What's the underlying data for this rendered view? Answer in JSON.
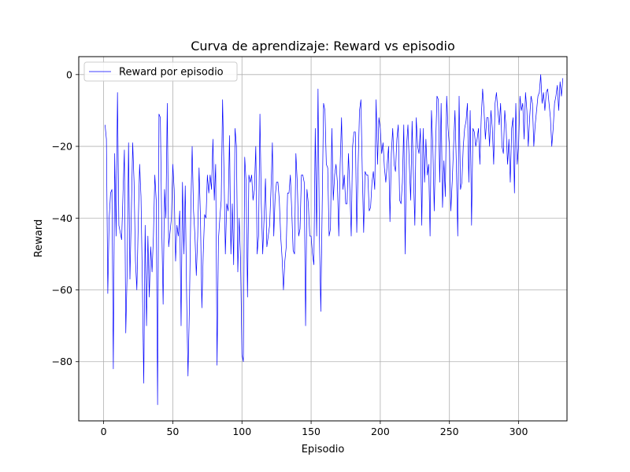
{
  "chart_data": {
    "type": "line",
    "title": "Curva de aprendizaje: Reward vs episodio",
    "xlabel": "Episodio",
    "ylabel": "Reward",
    "xlim": [
      -18,
      335
    ],
    "ylim": [
      -96.5,
      5
    ],
    "xticks": [
      0,
      50,
      100,
      150,
      200,
      250,
      300
    ],
    "yticks": [
      0,
      -20,
      -40,
      -60,
      -80
    ],
    "grid": true,
    "legend_position": "top-left",
    "series": [
      {
        "name": "Reward por episodio",
        "color": "#0000ff",
        "x_start": 1,
        "x_step": 1,
        "values": [
          -14,
          -18,
          -61,
          -40,
          -33,
          -32,
          -82,
          -22,
          -45,
          -5,
          -42,
          -44,
          -46,
          -33,
          -21,
          -72,
          -55,
          -19,
          -57,
          -39,
          -19,
          -30,
          -52,
          -60,
          -42,
          -25,
          -34,
          -58,
          -86,
          -42,
          -70,
          -45,
          -62,
          -48,
          -55,
          -45,
          -28,
          -35,
          -92,
          -11,
          -12,
          -42,
          -64,
          -32,
          -40,
          -8,
          -48,
          -44,
          -40,
          -25,
          -32,
          -52,
          -42,
          -45,
          -38,
          -70,
          -30,
          -50,
          -31,
          -62,
          -84,
          -65,
          -38,
          -20,
          -38,
          -45,
          -56,
          -45,
          -26,
          -40,
          -65,
          -50,
          -39,
          -40,
          -28,
          -33,
          -28,
          -32,
          -18,
          -35,
          -25,
          -81,
          -46,
          -40,
          -35,
          -7,
          -27,
          -50,
          -36,
          -38,
          -17,
          -50,
          -36,
          -53,
          -15,
          -20,
          -55,
          -40,
          -52,
          -78,
          -80,
          -23,
          -30,
          -62,
          -28,
          -30,
          -28,
          -35,
          -32,
          -20,
          -50,
          -45,
          -11,
          -36,
          -50,
          -40,
          -29,
          -48,
          -45,
          -42,
          -32,
          -19,
          -45,
          -34,
          -30,
          -30,
          -35,
          -45,
          -51,
          -60,
          -52,
          -48,
          -33,
          -33,
          -28,
          -38,
          -49,
          -50,
          -22,
          -30,
          -45,
          -43,
          -28,
          -28,
          -30,
          -70,
          -32,
          -36,
          -45,
          -45,
          -50,
          -53,
          -15,
          -45,
          -4,
          -45,
          -66,
          -37,
          -8,
          -10,
          -25,
          -26,
          -45,
          -43,
          -15,
          -35,
          -28,
          -25,
          -30,
          -45,
          -25,
          -12,
          -32,
          -28,
          -36,
          -36,
          -22,
          -32,
          -45,
          -20,
          -16,
          -16,
          -44,
          -25,
          -10,
          -7,
          -27,
          -44,
          -27,
          -28,
          -28,
          -38,
          -37,
          -30,
          -27,
          -32,
          -7,
          -25,
          -12,
          -15,
          -22,
          -19,
          -26,
          -30,
          -25,
          -20,
          -41,
          -22,
          -15,
          -25,
          -27,
          -18,
          -14,
          -35,
          -36,
          -30,
          -14,
          -50,
          -20,
          -14,
          -25,
          -35,
          -13,
          -28,
          -42,
          -12,
          -20,
          -22,
          -15,
          -42,
          -15,
          -30,
          -18,
          -28,
          -25,
          -45,
          -10,
          -20,
          -38,
          -20,
          -6,
          -7,
          -30,
          -8,
          -37,
          -24,
          -34,
          -6,
          -15,
          -20,
          -38,
          -30,
          -20,
          -10,
          -25,
          -45,
          -6,
          -32,
          -30,
          -20,
          -15,
          -13,
          -8,
          -30,
          -10,
          -42,
          -15,
          -16,
          -20,
          -18,
          -15,
          -25,
          -12,
          -4,
          -10,
          -18,
          -12,
          -12,
          -20,
          -10,
          -15,
          -25,
          -8,
          -5,
          -10,
          -14,
          -8,
          -20,
          -22,
          -10,
          -15,
          -25,
          -18,
          -30,
          -15,
          -12,
          -33,
          -8,
          -25,
          -20,
          -6,
          -10,
          -8,
          -18,
          -5,
          -10,
          -20,
          -12,
          -6,
          -8,
          -20,
          -14,
          -10,
          -6,
          -5,
          0,
          -8,
          -5,
          -10,
          -5,
          -4,
          -8,
          -12,
          -20,
          -15,
          -8,
          -6,
          -3,
          -10,
          -2,
          -6,
          -1
        ]
      }
    ]
  }
}
